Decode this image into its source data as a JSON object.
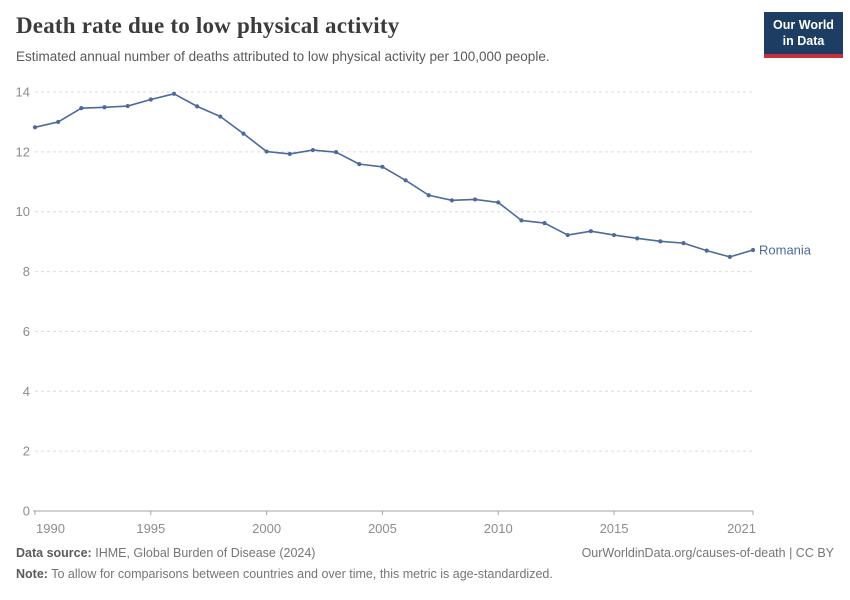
{
  "logo": {
    "line1": "Our World",
    "line2": "in Data",
    "bg_color": "#1d3d63",
    "bar_color": "#c4333a"
  },
  "chart_data": {
    "type": "line",
    "title": "Death rate due to low physical activity",
    "subtitle": "Estimated annual number of deaths attributed to low physical activity per 100,000 people.",
    "xlabel": "",
    "ylabel": "",
    "xlim": [
      1990,
      2021
    ],
    "ylim": [
      0,
      14
    ],
    "xticks": [
      1990,
      1995,
      2000,
      2005,
      2010,
      2015,
      2021
    ],
    "yticks": [
      0,
      2,
      4,
      6,
      8,
      10,
      12,
      14
    ],
    "grid": true,
    "legend_position": "end-of-line-label",
    "line_color": "#4c6a9c",
    "x": [
      1990,
      1991,
      1992,
      1993,
      1994,
      1995,
      1996,
      1997,
      1998,
      1999,
      2000,
      2001,
      2002,
      2003,
      2004,
      2005,
      2006,
      2007,
      2008,
      2009,
      2010,
      2011,
      2012,
      2013,
      2014,
      2015,
      2016,
      2017,
      2018,
      2019,
      2020,
      2021
    ],
    "series": [
      {
        "name": "Romania",
        "color": "#4c6a9c",
        "values": [
          12.82,
          13.0,
          13.46,
          13.49,
          13.53,
          13.75,
          13.94,
          13.52,
          13.18,
          12.61,
          12.01,
          11.93,
          12.06,
          11.99,
          11.59,
          11.5,
          11.05,
          10.55,
          10.38,
          10.41,
          10.31,
          9.71,
          9.62,
          9.22,
          9.35,
          9.22,
          9.11,
          9.01,
          8.95,
          8.7,
          8.49,
          8.72
        ]
      }
    ]
  },
  "footer": {
    "source_label": "Data source:",
    "source_text": "IHME, Global Burden of Disease (2024)",
    "link": "OurWorldinData.org/causes-of-death | CC BY",
    "note_label": "Note:",
    "note_text": "To allow for comparisons between countries and over time, this metric is age-standardized."
  }
}
